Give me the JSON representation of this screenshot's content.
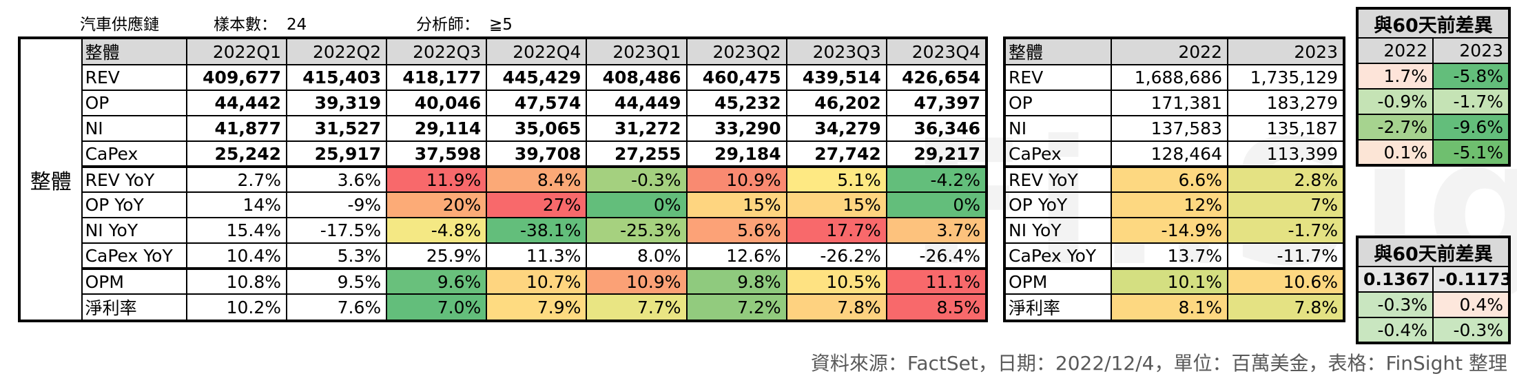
{
  "meta": {
    "sector": "汽車供應鏈",
    "sample_label": "樣本數：",
    "sample_value": "24",
    "analyst_label": "分析師：",
    "analyst_value": "≧5"
  },
  "watermark": "FinSight",
  "main": {
    "group_label": "整體",
    "header_label": "整體",
    "quarters": [
      "2022Q1",
      "2022Q2",
      "2022Q3",
      "2022Q4",
      "2023Q1",
      "2023Q2",
      "2023Q3",
      "2023Q4"
    ],
    "rows": [
      {
        "label": "REV",
        "values": [
          "409,677",
          "415,403",
          "418,177",
          "445,429",
          "408,486",
          "460,475",
          "439,514",
          "426,654"
        ],
        "colors": [
          "",
          "",
          "",
          "",
          "",
          "",
          "",
          ""
        ]
      },
      {
        "label": "OP",
        "values": [
          "44,442",
          "39,319",
          "40,046",
          "47,574",
          "44,449",
          "45,232",
          "46,202",
          "47,397"
        ],
        "colors": [
          "",
          "",
          "",
          "",
          "",
          "",
          "",
          ""
        ]
      },
      {
        "label": "NI",
        "values": [
          "41,877",
          "31,527",
          "29,114",
          "35,065",
          "31,272",
          "33,290",
          "34,279",
          "36,346"
        ],
        "colors": [
          "",
          "",
          "",
          "",
          "",
          "",
          "",
          ""
        ]
      },
      {
        "label": "CaPex",
        "values": [
          "25,242",
          "25,917",
          "37,598",
          "39,708",
          "27,255",
          "29,184",
          "27,742",
          "29,217"
        ],
        "colors": [
          "",
          "",
          "",
          "",
          "",
          "",
          "",
          ""
        ]
      },
      {
        "label": "REV YoY",
        "values": [
          "2.7%",
          "3.6%",
          "11.9%",
          "8.4%",
          "-0.3%",
          "10.9%",
          "5.1%",
          "-4.2%"
        ],
        "colors": [
          "",
          "",
          "#f8696b",
          "#fba977",
          "#a4d07f",
          "#f98a71",
          "#fee983",
          "#63be7b"
        ]
      },
      {
        "label": "OP YoY",
        "values": [
          "14%",
          "-9%",
          "20%",
          "27%",
          "0%",
          "15%",
          "15%",
          "0%"
        ],
        "colors": [
          "",
          "",
          "#fcab77",
          "#f8696b",
          "#63be7b",
          "#fed580",
          "#fed580",
          "#63be7b"
        ]
      },
      {
        "label": "NI YoY",
        "values": [
          "15.4%",
          "-17.5%",
          "-4.8%",
          "-38.1%",
          "-25.3%",
          "5.6%",
          "17.7%",
          "3.7%"
        ],
        "colors": [
          "",
          "",
          "#f4e884",
          "#63be7b",
          "#a6d17f",
          "#fca277",
          "#f8696b",
          "#fdc27d"
        ]
      },
      {
        "label": "CaPex YoY",
        "values": [
          "10.4%",
          "5.3%",
          "25.9%",
          "11.3%",
          "8.0%",
          "12.6%",
          "-26.2%",
          "-26.4%"
        ],
        "colors": [
          "",
          "",
          "",
          "",
          "",
          "",
          "",
          ""
        ]
      },
      {
        "label": "OPM",
        "values": [
          "10.8%",
          "9.5%",
          "9.6%",
          "10.7%",
          "10.9%",
          "9.8%",
          "10.5%",
          "11.1%"
        ],
        "colors": [
          "",
          "",
          "#69c07c",
          "#fed580",
          "#fba176",
          "#8fca7e",
          "#fee282",
          "#f8696b"
        ]
      },
      {
        "label": "淨利率",
        "values": [
          "10.2%",
          "7.6%",
          "7.0%",
          "7.9%",
          "7.7%",
          "7.2%",
          "7.8%",
          "8.5%"
        ],
        "colors": [
          "",
          "",
          "#63be7b",
          "#fedb81",
          "#e9e583",
          "#92cb7e",
          "#fed280",
          "#f8696b"
        ]
      }
    ]
  },
  "annual": {
    "header_label": "整體",
    "years": [
      "2022",
      "2023"
    ],
    "rows": [
      {
        "label": "REV",
        "values": [
          "1,688,686",
          "1,735,129"
        ],
        "colors": [
          "",
          ""
        ]
      },
      {
        "label": "OP",
        "values": [
          "171,381",
          "183,279"
        ],
        "colors": [
          "",
          ""
        ]
      },
      {
        "label": "NI",
        "values": [
          "137,583",
          "135,187"
        ],
        "colors": [
          "",
          ""
        ]
      },
      {
        "label": "CaPex",
        "values": [
          "128,464",
          "113,399"
        ],
        "colors": [
          "",
          ""
        ]
      },
      {
        "label": "REV YoY",
        "values": [
          "6.6%",
          "2.8%"
        ],
        "colors": [
          "#fdd881",
          "#e4e283"
        ]
      },
      {
        "label": "OP YoY",
        "values": [
          "12%",
          "7%"
        ],
        "colors": [
          "#fdd881",
          "#e4e283"
        ]
      },
      {
        "label": "NI YoY",
        "values": [
          "-14.9%",
          "-1.7%"
        ],
        "colors": [
          "#fdd881",
          "#e4e283"
        ]
      },
      {
        "label": "CaPex YoY",
        "values": [
          "13.7%",
          "-11.7%"
        ],
        "colors": [
          "",
          ""
        ]
      },
      {
        "label": "OPM",
        "values": [
          "10.1%",
          "10.6%"
        ],
        "colors": [
          "#d4df81",
          "#fdd881"
        ]
      },
      {
        "label": "淨利率",
        "values": [
          "8.1%",
          "7.8%"
        ],
        "colors": [
          "#fdd881",
          "#e4e283"
        ]
      }
    ]
  },
  "diff1": {
    "title": "與60天前差異",
    "years": [
      "2022",
      "2023"
    ],
    "rows": [
      {
        "values": [
          "1.7%",
          "-5.8%"
        ],
        "colors": [
          "#fde4d9",
          "#63be7b"
        ]
      },
      {
        "values": [
          "-0.9%",
          "-1.7%"
        ],
        "colors": [
          "#c5e3b5",
          "#c5e3b5"
        ]
      },
      {
        "values": [
          "-2.7%",
          "-9.6%"
        ],
        "colors": [
          "#a6d38f",
          "#63be7b"
        ]
      },
      {
        "values": [
          "0.1%",
          "-5.1%"
        ],
        "colors": [
          "#fce5d6",
          "#6fbf6f"
        ]
      }
    ]
  },
  "diff2": {
    "title": "與60天前差異",
    "rows": [
      {
        "values": [
          "0.1367",
          "-0.1173"
        ],
        "colors": [
          "#e7e7e7",
          "#e7e7e7"
        ]
      },
      {
        "values": [
          "-0.3%",
          "0.4%"
        ],
        "colors": [
          "#c9e6c0",
          "#fde7dc"
        ]
      },
      {
        "values": [
          "-0.4%",
          "-0.3%"
        ],
        "colors": [
          "#c9e6c0",
          "#c9e6c0"
        ]
      }
    ]
  },
  "source": "資料來源：FactSet，日期：2022/12/4，單位：百萬美金，表格：FinSight 整理"
}
